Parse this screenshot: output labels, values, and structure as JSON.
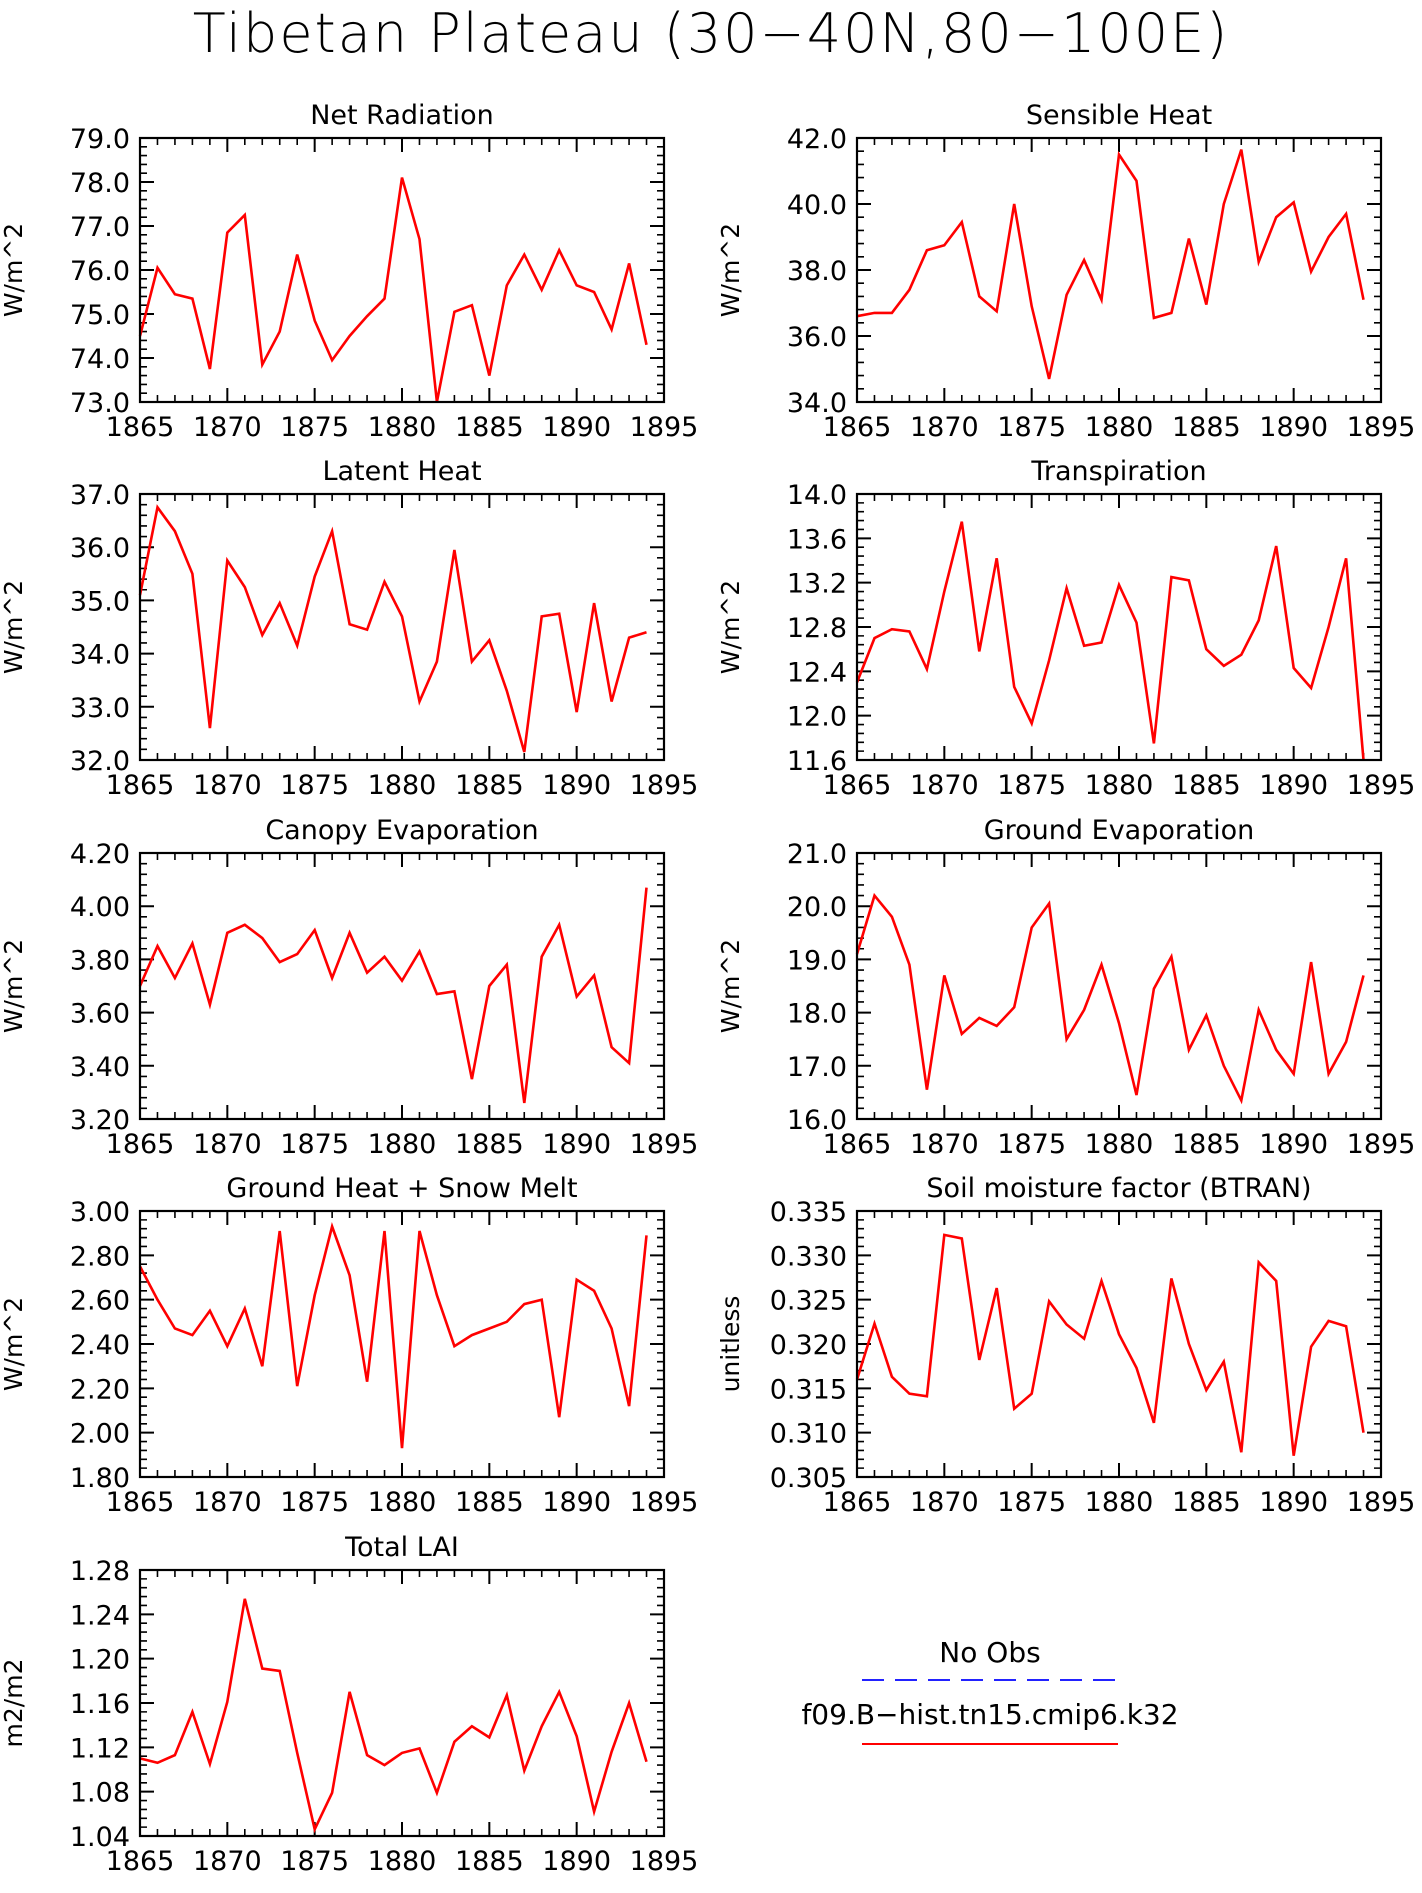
{
  "title": "Tibetan Plateau (30−40N,80−100E)",
  "legend": {
    "obs_label": "No Obs",
    "obs_color": "#2222ff",
    "model_label": "f09.B−hist.tn15.cmip6.k32",
    "model_color": "#ff0000"
  },
  "chart_data": [
    {
      "type": "line",
      "title": "Net Radiation",
      "ylabel": "W/m^2",
      "xlim": [
        1865,
        1895
      ],
      "ylim": [
        73.0,
        79.0
      ],
      "xticks": [
        "1865",
        "1870",
        "1875",
        "1880",
        "1885",
        "1890",
        "1895"
      ],
      "yticks": [
        "73.0",
        "74.0",
        "75.0",
        "76.0",
        "77.0",
        "78.0",
        "79.0"
      ],
      "series": [
        {
          "color": "#ff0000",
          "x": [
            1865,
            1866,
            1867,
            1868,
            1869,
            1870,
            1871,
            1872,
            1873,
            1874,
            1875,
            1876,
            1877,
            1878,
            1879,
            1880,
            1881,
            1882,
            1883,
            1884,
            1885,
            1886,
            1887,
            1888,
            1889,
            1890,
            1891,
            1892,
            1893,
            1894
          ],
          "values": [
            74.5,
            76.05,
            75.45,
            75.35,
            73.75,
            76.85,
            77.25,
            73.85,
            74.6,
            76.35,
            74.85,
            73.95,
            74.5,
            74.95,
            75.35,
            78.1,
            76.7,
            73.0,
            75.05,
            75.2,
            73.6,
            75.65,
            76.35,
            75.55,
            76.45,
            75.65,
            75.5,
            74.65,
            76.15,
            74.3
          ]
        }
      ]
    },
    {
      "type": "line",
      "title": "Sensible Heat",
      "ylabel": "W/m^2",
      "xlim": [
        1865,
        1895
      ],
      "ylim": [
        34.0,
        42.0
      ],
      "xticks": [
        "1865",
        "1870",
        "1875",
        "1880",
        "1885",
        "1890",
        "1895"
      ],
      "yticks": [
        "34.0",
        "36.0",
        "38.0",
        "40.0",
        "42.0"
      ],
      "series": [
        {
          "color": "#ff0000",
          "x": [
            1865,
            1866,
            1867,
            1868,
            1869,
            1870,
            1871,
            1872,
            1873,
            1874,
            1875,
            1876,
            1877,
            1878,
            1879,
            1880,
            1881,
            1882,
            1883,
            1884,
            1885,
            1886,
            1887,
            1888,
            1889,
            1890,
            1891,
            1892,
            1893,
            1894
          ],
          "values": [
            36.6,
            36.7,
            36.7,
            37.4,
            38.6,
            38.75,
            39.45,
            37.2,
            36.75,
            40.0,
            36.9,
            34.7,
            37.25,
            38.3,
            37.1,
            41.5,
            40.7,
            36.55,
            36.7,
            38.95,
            36.95,
            40.0,
            41.65,
            38.25,
            39.6,
            40.05,
            37.95,
            39.0,
            39.7,
            37.1
          ]
        }
      ]
    },
    {
      "type": "line",
      "title": "Latent Heat",
      "ylabel": "W/m^2",
      "xlim": [
        1865,
        1895
      ],
      "ylim": [
        32.0,
        37.0
      ],
      "xticks": [
        "1865",
        "1870",
        "1875",
        "1880",
        "1885",
        "1890",
        "1895"
      ],
      "yticks": [
        "32.0",
        "33.0",
        "34.0",
        "35.0",
        "36.0",
        "37.0"
      ],
      "series": [
        {
          "color": "#ff0000",
          "x": [
            1865,
            1866,
            1867,
            1868,
            1869,
            1870,
            1871,
            1872,
            1873,
            1874,
            1875,
            1876,
            1877,
            1878,
            1879,
            1880,
            1881,
            1882,
            1883,
            1884,
            1885,
            1886,
            1887,
            1888,
            1889,
            1890,
            1891,
            1892,
            1893,
            1894
          ],
          "values": [
            35.1,
            36.75,
            36.3,
            35.5,
            32.6,
            35.75,
            35.25,
            34.35,
            34.95,
            34.15,
            35.45,
            36.3,
            34.55,
            34.45,
            35.35,
            34.7,
            33.1,
            33.85,
            35.95,
            33.85,
            34.25,
            33.3,
            32.15,
            34.7,
            34.75,
            32.9,
            34.95,
            33.1,
            34.3,
            34.4
          ]
        }
      ]
    },
    {
      "type": "line",
      "title": "Transpiration",
      "ylabel": "W/m^2",
      "xlim": [
        1865,
        1895
      ],
      "ylim": [
        11.6,
        14.0
      ],
      "xticks": [
        "1865",
        "1870",
        "1875",
        "1880",
        "1885",
        "1890",
        "1895"
      ],
      "yticks": [
        "11.6",
        "12.0",
        "12.4",
        "12.8",
        "13.2",
        "13.6",
        "14.0"
      ],
      "series": [
        {
          "color": "#ff0000",
          "x": [
            1865,
            1866,
            1867,
            1868,
            1869,
            1870,
            1871,
            1872,
            1873,
            1874,
            1875,
            1876,
            1877,
            1878,
            1879,
            1880,
            1881,
            1882,
            1883,
            1884,
            1885,
            1886,
            1887,
            1888,
            1889,
            1890,
            1891,
            1892,
            1893,
            1894
          ],
          "values": [
            12.3,
            12.7,
            12.78,
            12.76,
            12.42,
            13.12,
            13.75,
            12.58,
            13.42,
            12.26,
            11.93,
            12.5,
            13.15,
            12.63,
            12.66,
            13.18,
            12.84,
            11.75,
            13.25,
            13.22,
            12.6,
            12.45,
            12.55,
            12.86,
            13.53,
            12.43,
            12.25,
            12.8,
            13.42,
            11.6
          ]
        }
      ]
    },
    {
      "type": "line",
      "title": "Canopy Evaporation",
      "ylabel": "W/m^2",
      "xlim": [
        1865,
        1895
      ],
      "ylim": [
        3.2,
        4.2
      ],
      "xticks": [
        "1865",
        "1870",
        "1875",
        "1880",
        "1885",
        "1890",
        "1895"
      ],
      "yticks": [
        "3.20",
        "3.40",
        "3.60",
        "3.80",
        "4.00",
        "4.20"
      ],
      "series": [
        {
          "color": "#ff0000",
          "x": [
            1865,
            1866,
            1867,
            1868,
            1869,
            1870,
            1871,
            1872,
            1873,
            1874,
            1875,
            1876,
            1877,
            1878,
            1879,
            1880,
            1881,
            1882,
            1883,
            1884,
            1885,
            1886,
            1887,
            1888,
            1889,
            1890,
            1891,
            1892,
            1893,
            1894
          ],
          "values": [
            3.7,
            3.85,
            3.73,
            3.86,
            3.63,
            3.9,
            3.93,
            3.88,
            3.79,
            3.82,
            3.91,
            3.73,
            3.9,
            3.75,
            3.81,
            3.72,
            3.83,
            3.67,
            3.68,
            3.35,
            3.7,
            3.78,
            3.26,
            3.81,
            3.93,
            3.66,
            3.74,
            3.47,
            3.41,
            4.07
          ]
        }
      ]
    },
    {
      "type": "line",
      "title": "Ground Evaporation",
      "ylabel": "W/m^2",
      "xlim": [
        1865,
        1895
      ],
      "ylim": [
        16.0,
        21.0
      ],
      "xticks": [
        "1865",
        "1870",
        "1875",
        "1880",
        "1885",
        "1890",
        "1895"
      ],
      "yticks": [
        "16.0",
        "17.0",
        "18.0",
        "19.0",
        "20.0",
        "21.0"
      ],
      "series": [
        {
          "color": "#ff0000",
          "x": [
            1865,
            1866,
            1867,
            1868,
            1869,
            1870,
            1871,
            1872,
            1873,
            1874,
            1875,
            1876,
            1877,
            1878,
            1879,
            1880,
            1881,
            1882,
            1883,
            1884,
            1885,
            1886,
            1887,
            1888,
            1889,
            1890,
            1891,
            1892,
            1893,
            1894
          ],
          "values": [
            19.1,
            20.2,
            19.8,
            18.9,
            16.55,
            18.7,
            17.6,
            17.9,
            17.75,
            18.1,
            19.6,
            20.05,
            17.5,
            18.05,
            18.9,
            17.8,
            16.45,
            18.45,
            19.05,
            17.3,
            17.95,
            17.0,
            16.35,
            18.05,
            17.3,
            16.85,
            18.95,
            16.85,
            17.45,
            18.7
          ]
        }
      ]
    },
    {
      "type": "line",
      "title": "Ground Heat + Snow Melt",
      "ylabel": "W/m^2",
      "xlim": [
        1865,
        1895
      ],
      "ylim": [
        1.8,
        3.0
      ],
      "xticks": [
        "1865",
        "1870",
        "1875",
        "1880",
        "1885",
        "1890",
        "1895"
      ],
      "yticks": [
        "1.80",
        "2.00",
        "2.20",
        "2.40",
        "2.60",
        "2.80",
        "3.00"
      ],
      "series": [
        {
          "color": "#ff0000",
          "x": [
            1865,
            1866,
            1867,
            1868,
            1869,
            1870,
            1871,
            1872,
            1873,
            1874,
            1875,
            1876,
            1877,
            1878,
            1879,
            1880,
            1881,
            1882,
            1883,
            1884,
            1885,
            1886,
            1887,
            1888,
            1889,
            1890,
            1891,
            1892,
            1893,
            1894
          ],
          "values": [
            2.75,
            2.6,
            2.47,
            2.44,
            2.55,
            2.39,
            2.56,
            2.3,
            2.91,
            2.21,
            2.62,
            2.93,
            2.71,
            2.23,
            2.91,
            1.93,
            2.91,
            2.62,
            2.39,
            2.44,
            2.47,
            2.5,
            2.58,
            2.6,
            2.07,
            2.69,
            2.64,
            2.47,
            2.12,
            2.89
          ]
        }
      ]
    },
    {
      "type": "line",
      "title": "Soil moisture factor (BTRAN)",
      "ylabel": "unitless",
      "xlim": [
        1865,
        1895
      ],
      "ylim": [
        0.305,
        0.335
      ],
      "xticks": [
        "1865",
        "1870",
        "1875",
        "1880",
        "1885",
        "1890",
        "1895"
      ],
      "yticks": [
        "0.305",
        "0.310",
        "0.315",
        "0.320",
        "0.325",
        "0.330",
        "0.335"
      ],
      "series": [
        {
          "color": "#ff0000",
          "x": [
            1865,
            1866,
            1867,
            1868,
            1869,
            1870,
            1871,
            1872,
            1873,
            1874,
            1875,
            1876,
            1877,
            1878,
            1879,
            1880,
            1881,
            1882,
            1883,
            1884,
            1885,
            1886,
            1887,
            1888,
            1889,
            1890,
            1891,
            1892,
            1893,
            1894
          ],
          "values": [
            0.316,
            0.3223,
            0.3163,
            0.3144,
            0.3141,
            0.3323,
            0.3319,
            0.3182,
            0.3263,
            0.3127,
            0.3144,
            0.3248,
            0.3222,
            0.3206,
            0.3271,
            0.3211,
            0.3173,
            0.3111,
            0.3274,
            0.32,
            0.3148,
            0.318,
            0.3078,
            0.3292,
            0.3271,
            0.3074,
            0.3197,
            0.3226,
            0.322,
            0.31
          ]
        }
      ]
    },
    {
      "type": "line",
      "title": "Total LAI",
      "ylabel": "m2/m2",
      "xlim": [
        1865,
        1895
      ],
      "ylim": [
        1.04,
        1.28
      ],
      "xticks": [
        "1865",
        "1870",
        "1875",
        "1880",
        "1885",
        "1890",
        "1895"
      ],
      "yticks": [
        "1.04",
        "1.08",
        "1.12",
        "1.16",
        "1.20",
        "1.24",
        "1.28"
      ],
      "series": [
        {
          "color": "#ff0000",
          "x": [
            1865,
            1866,
            1867,
            1868,
            1869,
            1870,
            1871,
            1872,
            1873,
            1874,
            1875,
            1876,
            1877,
            1878,
            1879,
            1880,
            1881,
            1882,
            1883,
            1884,
            1885,
            1886,
            1887,
            1888,
            1889,
            1890,
            1891,
            1892,
            1893,
            1894
          ],
          "values": [
            1.11,
            1.106,
            1.113,
            1.152,
            1.105,
            1.161,
            1.254,
            1.191,
            1.189,
            1.115,
            1.046,
            1.079,
            1.17,
            1.113,
            1.104,
            1.115,
            1.119,
            1.079,
            1.125,
            1.139,
            1.129,
            1.167,
            1.099,
            1.139,
            1.17,
            1.13,
            1.062,
            1.116,
            1.16,
            1.107
          ]
        }
      ]
    }
  ]
}
